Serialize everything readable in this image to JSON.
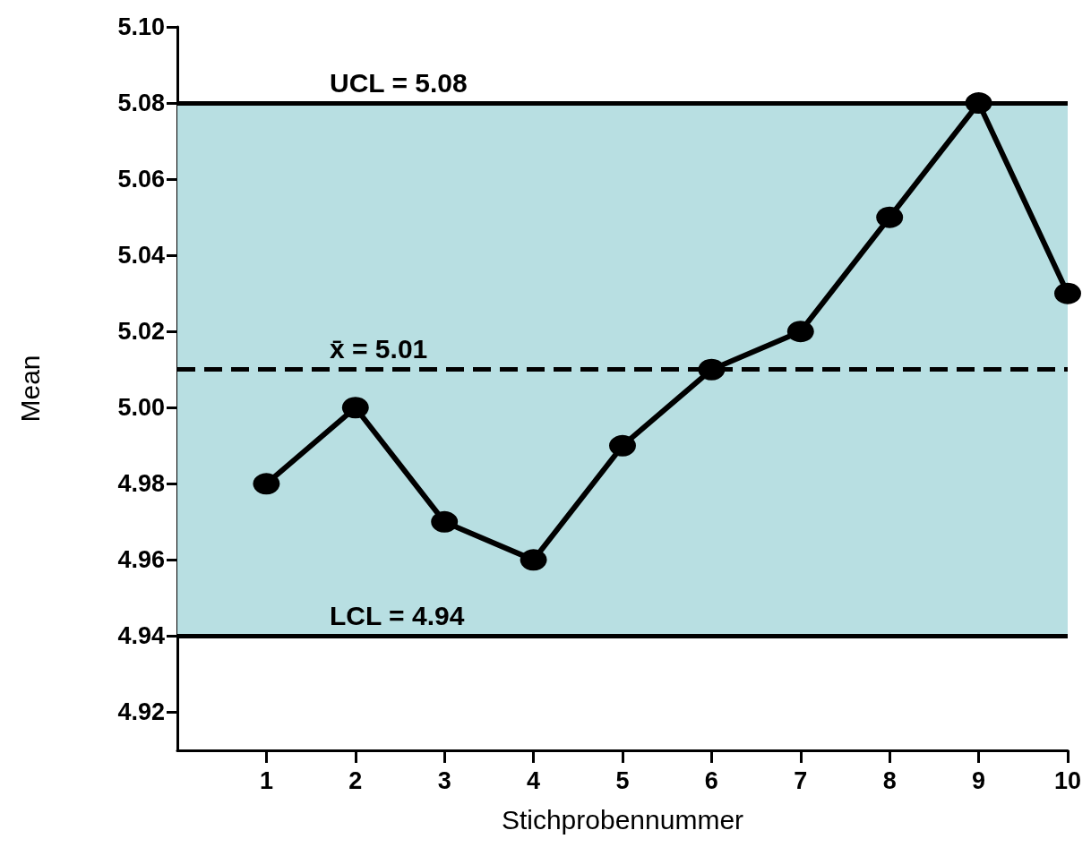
{
  "chart_data": {
    "type": "line",
    "xlabel": "Stichprobennummer",
    "ylabel": "Mean",
    "x": [
      1,
      2,
      3,
      4,
      5,
      6,
      7,
      8,
      9,
      10
    ],
    "series": [
      {
        "color": "#000000",
        "values": [
          4.98,
          5.0,
          4.97,
          4.96,
          4.99,
          5.01,
          5.02,
          5.05,
          5.08,
          5.03
        ]
      }
    ],
    "xlim": [
      0,
      10
    ],
    "xticks": [
      1,
      2,
      3,
      4,
      5,
      6,
      7,
      8,
      9,
      10
    ],
    "ylim": [
      4.91,
      5.1
    ],
    "yticks": [
      4.92,
      4.94,
      4.96,
      4.98,
      {
        "value": 5.0,
        "label": "5.00"
      },
      5.02,
      5.04,
      5.06,
      5.08,
      {
        "value": 5.1,
        "label": "5.10"
      }
    ],
    "ref_lines": [
      {
        "axis": "y",
        "value": 5.08,
        "label": "UCL = 5.08",
        "color": "#000000",
        "line_style": "solid"
      },
      {
        "axis": "y",
        "value": 5.01,
        "label": "x̄ = 5.01",
        "color": "#000000",
        "line_style": "dashed"
      },
      {
        "axis": "y",
        "value": 4.94,
        "label": "LCL = 4.94",
        "color": "#000000",
        "line_style": "solid"
      }
    ],
    "bands": [
      {
        "axis": "y",
        "from": 4.94,
        "to": 5.08,
        "color": "#b8dfe2"
      }
    ],
    "marker": "circle",
    "line_style": "solid"
  }
}
